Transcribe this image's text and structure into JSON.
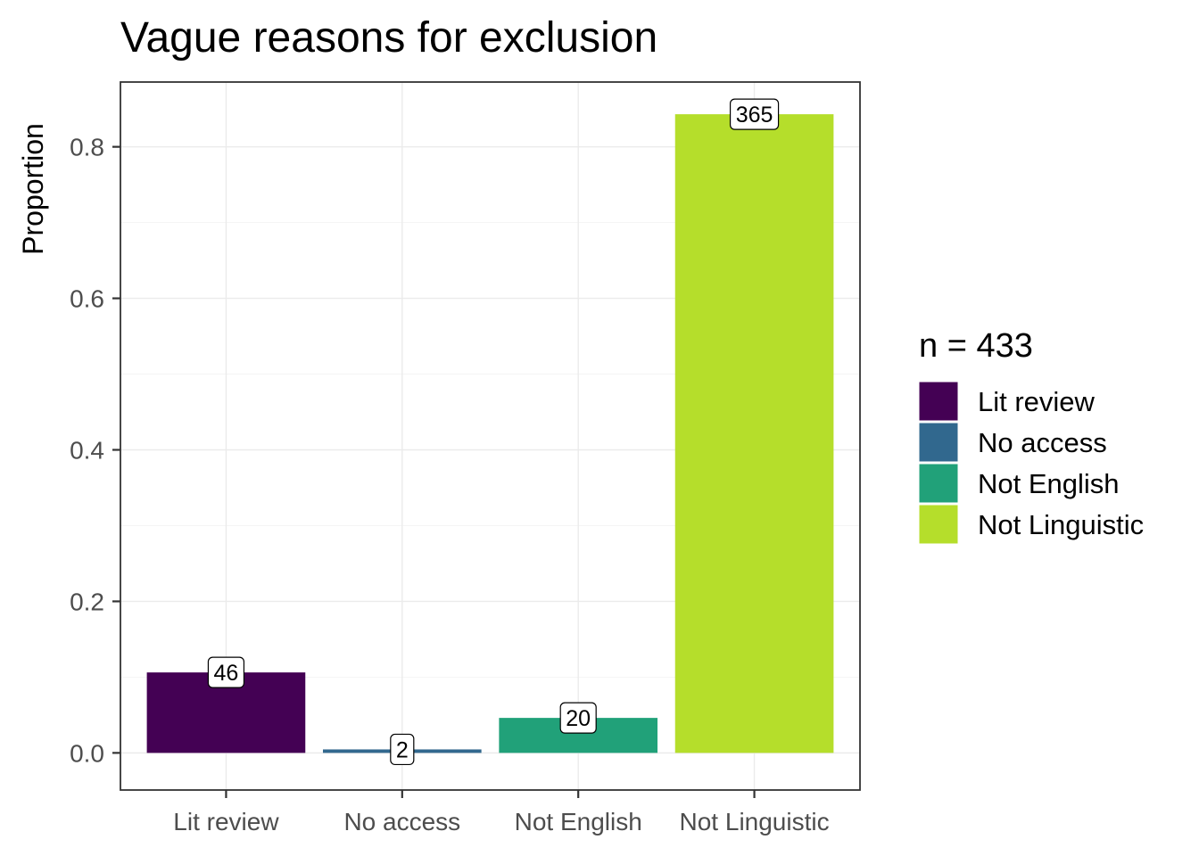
{
  "chart_data": {
    "type": "bar",
    "title": "Vague reasons for exclusion",
    "xlabel": "",
    "ylabel": "Proportion",
    "categories": [
      "Lit review",
      "No access",
      "Not English",
      "Not Linguistic"
    ],
    "values": [
      0.1062,
      0.0046,
      0.0462,
      0.843
    ],
    "counts": [
      "46",
      "2",
      "20",
      "365"
    ],
    "colors": [
      "#440154",
      "#31688E",
      "#21A179",
      "#B5DE2B"
    ],
    "ylim": [
      -0.049,
      0.8855
    ],
    "yticks": [
      0.0,
      0.2,
      0.4,
      0.6,
      0.8
    ],
    "ytick_labels": [
      "0.0",
      "0.2",
      "0.4",
      "0.6",
      "0.8"
    ],
    "grid": true,
    "legend": {
      "title": "n = 433",
      "position": "right",
      "entries": [
        "Lit review",
        "No access",
        "Not English",
        "Not Linguistic"
      ]
    }
  }
}
